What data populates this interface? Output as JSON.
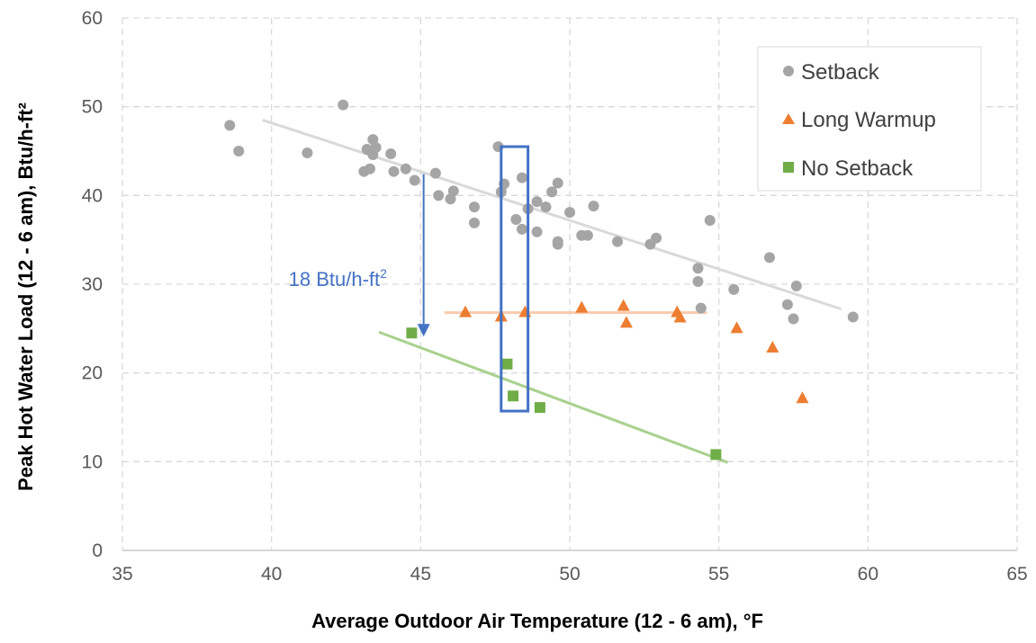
{
  "chart_data": {
    "type": "scatter",
    "xlabel": "Average Outdoor Air Temperature (12 - 6 am), °F",
    "ylabel": "Peak Hot Water Load (12 - 6 am), Btu/h-ft²",
    "xlim": [
      35,
      65
    ],
    "ylim": [
      0,
      60
    ],
    "x_ticks": [
      "35",
      "40",
      "45",
      "50",
      "55",
      "60",
      "65"
    ],
    "y_ticks": [
      "0",
      "10",
      "20",
      "30",
      "40",
      "50",
      "60"
    ],
    "grid": true,
    "legend_position": "top-right",
    "series": [
      {
        "name": "Setback",
        "marker": "circle",
        "color": "#a5a5a5",
        "trend_color": "#d9d9d9",
        "trendline": [
          [
            39.7,
            48.5
          ],
          [
            59.1,
            27.2
          ]
        ],
        "points": [
          [
            38.6,
            47.9
          ],
          [
            38.9,
            45.0
          ],
          [
            41.2,
            44.8
          ],
          [
            42.4,
            50.2
          ],
          [
            43.1,
            42.7
          ],
          [
            43.2,
            45.2
          ],
          [
            43.3,
            43.0
          ],
          [
            43.4,
            46.3
          ],
          [
            43.4,
            44.6
          ],
          [
            43.5,
            45.4
          ],
          [
            44.0,
            44.7
          ],
          [
            44.1,
            42.7
          ],
          [
            44.5,
            43.0
          ],
          [
            44.8,
            41.7
          ],
          [
            45.5,
            42.5
          ],
          [
            45.6,
            40.0
          ],
          [
            46.0,
            39.6
          ],
          [
            46.1,
            40.5
          ],
          [
            46.8,
            36.9
          ],
          [
            46.8,
            38.7
          ],
          [
            47.6,
            45.5
          ],
          [
            47.7,
            40.4
          ],
          [
            47.8,
            41.3
          ],
          [
            48.2,
            37.3
          ],
          [
            48.4,
            42.0
          ],
          [
            48.4,
            36.2
          ],
          [
            48.6,
            38.5
          ],
          [
            48.9,
            39.3
          ],
          [
            48.9,
            35.9
          ],
          [
            49.2,
            38.7
          ],
          [
            49.4,
            40.4
          ],
          [
            49.6,
            41.4
          ],
          [
            49.6,
            34.8
          ],
          [
            49.6,
            34.5
          ],
          [
            50.0,
            38.1
          ],
          [
            50.4,
            35.5
          ],
          [
            50.6,
            35.5
          ],
          [
            50.8,
            38.8
          ],
          [
            51.6,
            34.8
          ],
          [
            52.7,
            34.5
          ],
          [
            52.9,
            35.2
          ],
          [
            54.3,
            31.8
          ],
          [
            54.3,
            30.3
          ],
          [
            54.4,
            27.3
          ],
          [
            54.7,
            37.2
          ],
          [
            55.5,
            29.4
          ],
          [
            56.7,
            33.0
          ],
          [
            57.3,
            27.7
          ],
          [
            57.5,
            26.1
          ],
          [
            57.6,
            29.8
          ],
          [
            59.5,
            26.3
          ]
        ]
      },
      {
        "name": "Long Warmup",
        "marker": "triangle",
        "color": "#ed7d31",
        "trend_color": "#f8cbad",
        "trendline": [
          [
            45.8,
            26.8
          ],
          [
            54.6,
            26.8
          ]
        ],
        "points": [
          [
            46.5,
            26.9
          ],
          [
            47.7,
            26.4
          ],
          [
            48.5,
            26.9
          ],
          [
            50.4,
            27.4
          ],
          [
            51.8,
            27.6
          ],
          [
            51.9,
            25.7
          ],
          [
            53.6,
            26.9
          ],
          [
            53.7,
            26.3
          ],
          [
            55.6,
            25.1
          ],
          [
            56.8,
            22.9
          ],
          [
            57.8,
            17.2
          ]
        ]
      },
      {
        "name": "No Setback",
        "marker": "square",
        "color": "#70ad47",
        "trend_color": "#a9d18e",
        "trendline": [
          [
            43.6,
            24.6
          ],
          [
            55.3,
            9.9
          ]
        ],
        "points": [
          [
            44.7,
            24.5
          ],
          [
            47.9,
            21.0
          ],
          [
            48.1,
            17.4
          ],
          [
            49.0,
            16.1
          ],
          [
            54.9,
            10.8
          ]
        ]
      }
    ],
    "annotation": {
      "text": "18 Btu/h-ft",
      "superscript": "2",
      "arrow_x": 45.1,
      "arrow_from_y": 42.4,
      "arrow_to_y": 24.1,
      "color": "#4472c4"
    },
    "highlight_box": {
      "x_range": [
        47.7,
        48.6
      ],
      "y_range": [
        15.7,
        45.5
      ],
      "color": "#4472c4"
    }
  }
}
